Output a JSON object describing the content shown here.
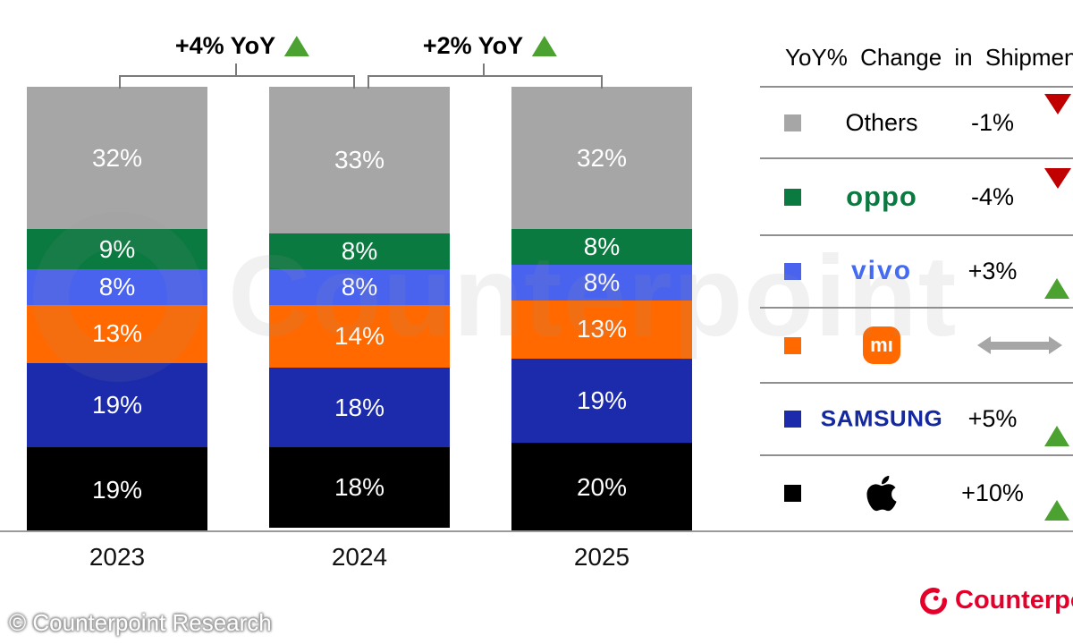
{
  "watermark": {
    "text": "Counterpoint"
  },
  "chart_data": {
    "type": "bar",
    "stacked": true,
    "unit": "%",
    "categories": [
      "2023",
      "2024",
      "2025"
    ],
    "series": [
      {
        "name": "Apple",
        "color": "#000000",
        "values": [
          19,
          18,
          20
        ]
      },
      {
        "name": "Samsung",
        "color": "#1c2bab",
        "values": [
          19,
          18,
          19
        ]
      },
      {
        "name": "Xiaomi",
        "color": "#ff6900",
        "values": [
          13,
          14,
          13
        ]
      },
      {
        "name": "vivo",
        "color": "#4a63ef",
        "values": [
          8,
          8,
          8
        ]
      },
      {
        "name": "OPPO",
        "color": "#0b7a40",
        "values": [
          9,
          8,
          8
        ]
      },
      {
        "name": "Others",
        "color": "#a6a6a6",
        "values": [
          32,
          33,
          32
        ]
      }
    ],
    "ylim": [
      0,
      100
    ],
    "grid": false,
    "annotations": [
      {
        "label": "+4% YoY",
        "direction": "up",
        "from": "2023",
        "to": "2024"
      },
      {
        "label": "+2% YoY",
        "direction": "up",
        "from": "2024",
        "to": "2025"
      }
    ],
    "legend_position": "right",
    "legend_title": "YoY% Change in Shipments",
    "legend": [
      {
        "brand": "Others",
        "label": "Others",
        "change": "-1%",
        "direction": "down"
      },
      {
        "brand": "OPPO",
        "label": "oppo",
        "change": "-4%",
        "direction": "down"
      },
      {
        "brand": "vivo",
        "label": "vivo",
        "change": "+3%",
        "direction": "up"
      },
      {
        "brand": "Xiaomi",
        "label": "mı",
        "change": "",
        "direction": "flat"
      },
      {
        "brand": "Samsung",
        "label": "SAMSUNG",
        "change": "+5%",
        "direction": "up"
      },
      {
        "brand": "Apple",
        "label": "",
        "change": "+10%",
        "direction": "up"
      }
    ]
  },
  "footer": {
    "copyright": "© Counterpoint Research",
    "brand": "Counterpoint"
  },
  "colors": {
    "up_triangle": "#4ca231",
    "down_triangle": "#c00000",
    "flat_arrow": "#a6a6a6",
    "axis": "#9a9a9a",
    "bracket": "#7a7a7a",
    "brand_red": "#e4002b",
    "oppo_logo": "#0b7a40",
    "vivo_logo": "#416af5",
    "samsung_logo": "#1428a0",
    "xiaomi_logo": "#ff6900"
  }
}
